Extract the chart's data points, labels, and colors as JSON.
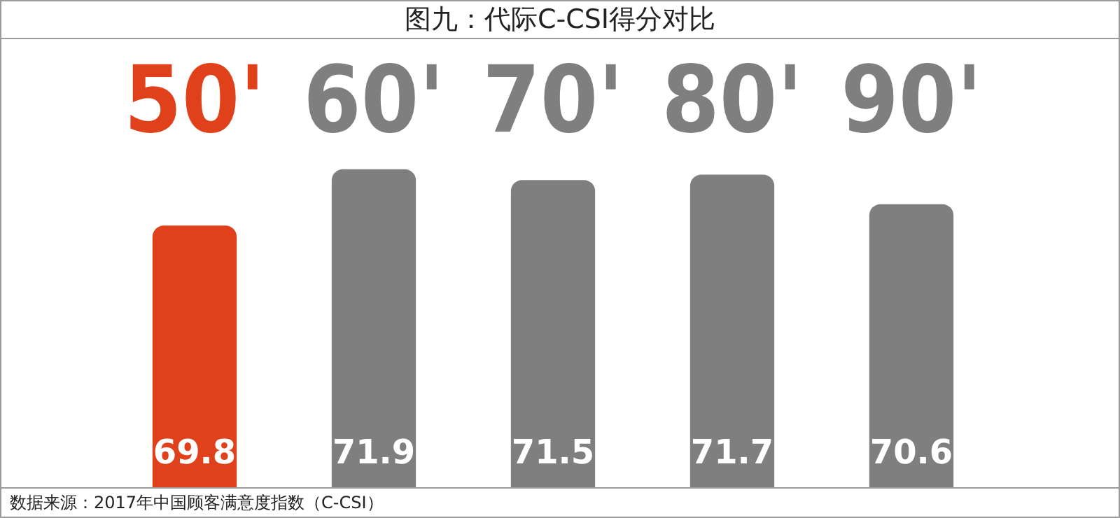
{
  "chart_data": {
    "type": "bar",
    "title": "图九：代际C-CSI得分对比",
    "categories": [
      "50'",
      "60'",
      "70'",
      "80'",
      "90'"
    ],
    "values": [
      69.8,
      71.9,
      71.5,
      71.7,
      70.6
    ],
    "colors": [
      "#e0401a",
      "#7f7f7f",
      "#7f7f7f",
      "#7f7f7f",
      "#7f7f7f"
    ],
    "ylim": [
      60,
      76.8
    ],
    "data_labels": true,
    "tick_labels": "x",
    "annotations": [
      "数据来源：2017年中国顾客满意度指数（C-CSI）"
    ]
  }
}
